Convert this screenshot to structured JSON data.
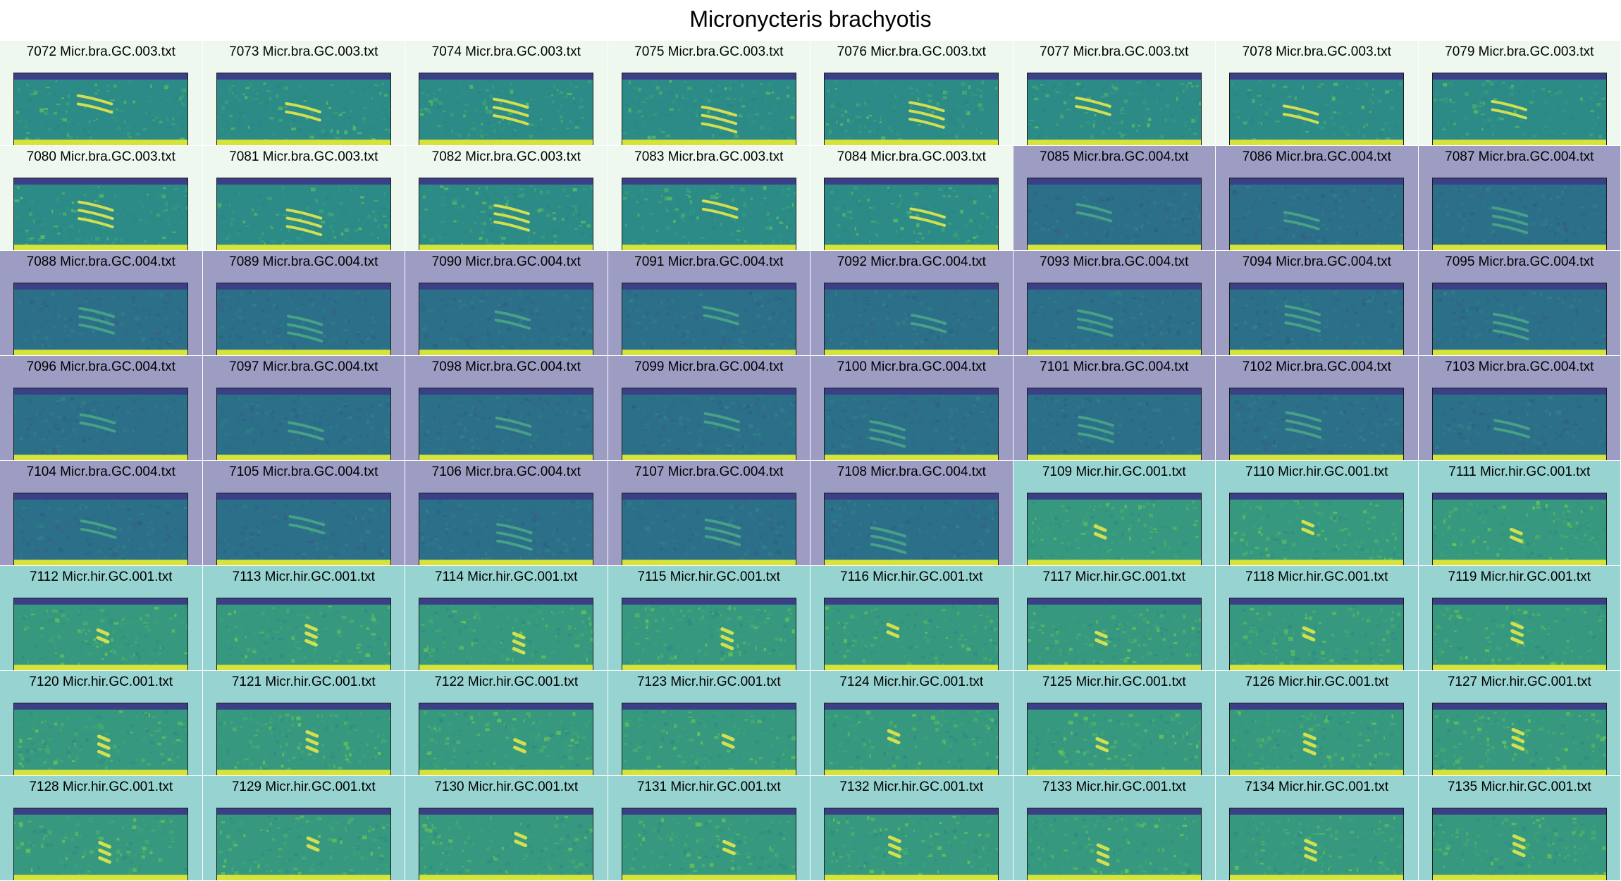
{
  "title": "Micronycteris brachyotis",
  "group_colors": {
    "Micr.bra.GC.003": "#eff8ee",
    "Micr.bra.GC.004": "#9d9dc4",
    "Micr.hir.GC.001": "#97d4d1"
  },
  "grid": {
    "columns": 8,
    "rows": 8
  },
  "cells": [
    {
      "label": "7072 Micr.bra.GC.003.txt",
      "group": "Micr.bra.GC.003"
    },
    {
      "label": "7073 Micr.bra.GC.003.txt",
      "group": "Micr.bra.GC.003"
    },
    {
      "label": "7074 Micr.bra.GC.003.txt",
      "group": "Micr.bra.GC.003"
    },
    {
      "label": "7075 Micr.bra.GC.003.txt",
      "group": "Micr.bra.GC.003"
    },
    {
      "label": "7076 Micr.bra.GC.003.txt",
      "group": "Micr.bra.GC.003"
    },
    {
      "label": "7077 Micr.bra.GC.003.txt",
      "group": "Micr.bra.GC.003"
    },
    {
      "label": "7078 Micr.bra.GC.003.txt",
      "group": "Micr.bra.GC.003"
    },
    {
      "label": "7079 Micr.bra.GC.003.txt",
      "group": "Micr.bra.GC.003"
    },
    {
      "label": "7080 Micr.bra.GC.003.txt",
      "group": "Micr.bra.GC.003"
    },
    {
      "label": "7081 Micr.bra.GC.003.txt",
      "group": "Micr.bra.GC.003"
    },
    {
      "label": "7082 Micr.bra.GC.003.txt",
      "group": "Micr.bra.GC.003"
    },
    {
      "label": "7083 Micr.bra.GC.003.txt",
      "group": "Micr.bra.GC.003"
    },
    {
      "label": "7084 Micr.bra.GC.003.txt",
      "group": "Micr.bra.GC.003"
    },
    {
      "label": "7085 Micr.bra.GC.004.txt",
      "group": "Micr.bra.GC.004"
    },
    {
      "label": "7086 Micr.bra.GC.004.txt",
      "group": "Micr.bra.GC.004"
    },
    {
      "label": "7087 Micr.bra.GC.004.txt",
      "group": "Micr.bra.GC.004"
    },
    {
      "label": "7088 Micr.bra.GC.004.txt",
      "group": "Micr.bra.GC.004"
    },
    {
      "label": "7089 Micr.bra.GC.004.txt",
      "group": "Micr.bra.GC.004"
    },
    {
      "label": "7090 Micr.bra.GC.004.txt",
      "group": "Micr.bra.GC.004"
    },
    {
      "label": "7091 Micr.bra.GC.004.txt",
      "group": "Micr.bra.GC.004"
    },
    {
      "label": "7092 Micr.bra.GC.004.txt",
      "group": "Micr.bra.GC.004"
    },
    {
      "label": "7093 Micr.bra.GC.004.txt",
      "group": "Micr.bra.GC.004"
    },
    {
      "label": "7094 Micr.bra.GC.004.txt",
      "group": "Micr.bra.GC.004"
    },
    {
      "label": "7095 Micr.bra.GC.004.txt",
      "group": "Micr.bra.GC.004"
    },
    {
      "label": "7096 Micr.bra.GC.004.txt",
      "group": "Micr.bra.GC.004"
    },
    {
      "label": "7097 Micr.bra.GC.004.txt",
      "group": "Micr.bra.GC.004"
    },
    {
      "label": "7098 Micr.bra.GC.004.txt",
      "group": "Micr.bra.GC.004"
    },
    {
      "label": "7099 Micr.bra.GC.004.txt",
      "group": "Micr.bra.GC.004"
    },
    {
      "label": "7100 Micr.bra.GC.004.txt",
      "group": "Micr.bra.GC.004"
    },
    {
      "label": "7101 Micr.bra.GC.004.txt",
      "group": "Micr.bra.GC.004"
    },
    {
      "label": "7102 Micr.bra.GC.004.txt",
      "group": "Micr.bra.GC.004"
    },
    {
      "label": "7103 Micr.bra.GC.004.txt",
      "group": "Micr.bra.GC.004"
    },
    {
      "label": "7104 Micr.bra.GC.004.txt",
      "group": "Micr.bra.GC.004"
    },
    {
      "label": "7105 Micr.bra.GC.004.txt",
      "group": "Micr.bra.GC.004"
    },
    {
      "label": "7106 Micr.bra.GC.004.txt",
      "group": "Micr.bra.GC.004"
    },
    {
      "label": "7107 Micr.bra.GC.004.txt",
      "group": "Micr.bra.GC.004"
    },
    {
      "label": "7108 Micr.bra.GC.004.txt",
      "group": "Micr.bra.GC.004"
    },
    {
      "label": "7109 Micr.hir.GC.001.txt",
      "group": "Micr.hir.GC.001"
    },
    {
      "label": "7110 Micr.hir.GC.001.txt",
      "group": "Micr.hir.GC.001"
    },
    {
      "label": "7111 Micr.hir.GC.001.txt",
      "group": "Micr.hir.GC.001"
    },
    {
      "label": "7112 Micr.hir.GC.001.txt",
      "group": "Micr.hir.GC.001"
    },
    {
      "label": "7113 Micr.hir.GC.001.txt",
      "group": "Micr.hir.GC.001"
    },
    {
      "label": "7114 Micr.hir.GC.001.txt",
      "group": "Micr.hir.GC.001"
    },
    {
      "label": "7115 Micr.hir.GC.001.txt",
      "group": "Micr.hir.GC.001"
    },
    {
      "label": "7116 Micr.hir.GC.001.txt",
      "group": "Micr.hir.GC.001"
    },
    {
      "label": "7117 Micr.hir.GC.001.txt",
      "group": "Micr.hir.GC.001"
    },
    {
      "label": "7118 Micr.hir.GC.001.txt",
      "group": "Micr.hir.GC.001"
    },
    {
      "label": "7119 Micr.hir.GC.001.txt",
      "group": "Micr.hir.GC.001"
    },
    {
      "label": "7120 Micr.hir.GC.001.txt",
      "group": "Micr.hir.GC.001"
    },
    {
      "label": "7121 Micr.hir.GC.001.txt",
      "group": "Micr.hir.GC.001"
    },
    {
      "label": "7122 Micr.hir.GC.001.txt",
      "group": "Micr.hir.GC.001"
    },
    {
      "label": "7123 Micr.hir.GC.001.txt",
      "group": "Micr.hir.GC.001"
    },
    {
      "label": "7124 Micr.hir.GC.001.txt",
      "group": "Micr.hir.GC.001"
    },
    {
      "label": "7125 Micr.hir.GC.001.txt",
      "group": "Micr.hir.GC.001"
    },
    {
      "label": "7126 Micr.hir.GC.001.txt",
      "group": "Micr.hir.GC.001"
    },
    {
      "label": "7127 Micr.hir.GC.001.txt",
      "group": "Micr.hir.GC.001"
    },
    {
      "label": "7128 Micr.hir.GC.001.txt",
      "group": "Micr.hir.GC.001"
    },
    {
      "label": "7129 Micr.hir.GC.001.txt",
      "group": "Micr.hir.GC.001"
    },
    {
      "label": "7130 Micr.hir.GC.001.txt",
      "group": "Micr.hir.GC.001"
    },
    {
      "label": "7131 Micr.hir.GC.001.txt",
      "group": "Micr.hir.GC.001"
    },
    {
      "label": "7132 Micr.hir.GC.001.txt",
      "group": "Micr.hir.GC.001"
    },
    {
      "label": "7133 Micr.hir.GC.001.txt",
      "group": "Micr.hir.GC.001"
    },
    {
      "label": "7134 Micr.hir.GC.001.txt",
      "group": "Micr.hir.GC.001"
    },
    {
      "label": "7135 Micr.hir.GC.001.txt",
      "group": "Micr.hir.GC.001"
    }
  ]
}
